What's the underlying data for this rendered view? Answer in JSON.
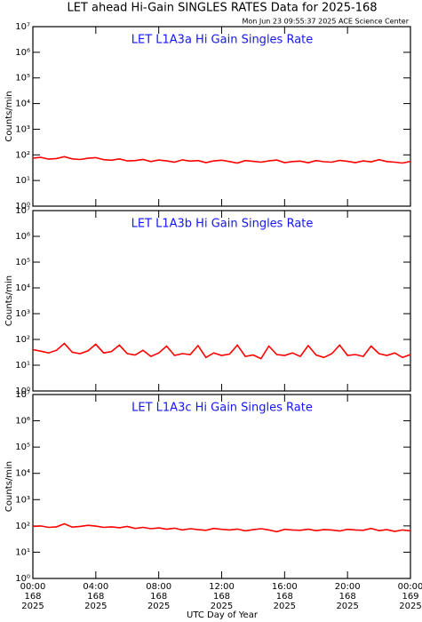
{
  "title": "LET ahead Hi-Gain SINGLES RATES Data for 2025-168",
  "timestamp": "Mon Jun 23 09:55:37 2025 ACE Science Center",
  "xlabel": "UTC Day of Year",
  "chart_data": [
    {
      "type": "line",
      "title": "LET L1A3a Hi Gain Singles Rate",
      "ylabel": "Counts/min",
      "log_y": true,
      "color": "#ff0000",
      "xlim": [
        0,
        24
      ],
      "ylim": [
        1,
        10000000
      ],
      "yticks": [
        {
          "value": 1,
          "label": "10⁰"
        },
        {
          "value": 10,
          "label": "10¹"
        },
        {
          "value": 100,
          "label": "10²"
        },
        {
          "value": 1000,
          "label": "10³"
        },
        {
          "value": 10000,
          "label": "10⁴"
        },
        {
          "value": 100000,
          "label": "10⁵"
        },
        {
          "value": 1000000,
          "label": "10⁶"
        },
        {
          "value": 10000000,
          "label": "10⁷"
        }
      ],
      "x": [
        0,
        0.5,
        1,
        1.5,
        2,
        2.5,
        3,
        3.5,
        4,
        4.5,
        5,
        5.5,
        6,
        6.5,
        7,
        7.5,
        8,
        8.5,
        9,
        9.5,
        10,
        10.5,
        11,
        11.5,
        12,
        12.5,
        13,
        13.5,
        14,
        14.5,
        15,
        15.5,
        16,
        16.5,
        17,
        17.5,
        18,
        18.5,
        19,
        19.5,
        20,
        20.5,
        21,
        21.5,
        22,
        22.5,
        23,
        23.5,
        24
      ],
      "values": [
        75,
        80,
        68,
        72,
        85,
        70,
        66,
        74,
        78,
        65,
        62,
        70,
        58,
        60,
        66,
        55,
        63,
        58,
        52,
        64,
        57,
        60,
        50,
        58,
        62,
        55,
        48,
        60,
        56,
        52,
        58,
        63,
        50,
        55,
        57,
        49,
        60,
        54,
        52,
        61,
        56,
        50,
        58,
        53,
        65,
        55,
        52,
        48,
        56
      ]
    },
    {
      "type": "line",
      "title": "LET L1A3b Hi Gain Singles Rate",
      "ylabel": "Counts/min",
      "log_y": true,
      "color": "#ff0000",
      "xlim": [
        0,
        24
      ],
      "ylim": [
        1,
        10000000
      ],
      "yticks": [
        {
          "value": 1,
          "label": "10⁰"
        },
        {
          "value": 10,
          "label": "10¹"
        },
        {
          "value": 100,
          "label": "10²"
        },
        {
          "value": 1000,
          "label": "10³"
        },
        {
          "value": 10000,
          "label": "10⁴"
        },
        {
          "value": 100000,
          "label": "10⁵"
        },
        {
          "value": 1000000,
          "label": "10⁶"
        },
        {
          "value": 10000000,
          "label": "10⁷"
        }
      ],
      "x": [
        0,
        0.5,
        1,
        1.5,
        2,
        2.5,
        3,
        3.5,
        4,
        4.5,
        5,
        5.5,
        6,
        6.5,
        7,
        7.5,
        8,
        8.5,
        9,
        9.5,
        10,
        10.5,
        11,
        11.5,
        12,
        12.5,
        13,
        13.5,
        14,
        14.5,
        15,
        15.5,
        16,
        16.5,
        17,
        17.5,
        18,
        18.5,
        19,
        19.5,
        20,
        20.5,
        21,
        21.5,
        22,
        22.5,
        23,
        23.5,
        24
      ],
      "values": [
        40,
        35,
        30,
        38,
        70,
        32,
        28,
        36,
        65,
        30,
        34,
        60,
        28,
        25,
        38,
        22,
        30,
        55,
        24,
        28,
        26,
        58,
        20,
        30,
        24,
        27,
        60,
        22,
        25,
        18,
        55,
        26,
        24,
        30,
        22,
        58,
        25,
        20,
        28,
        60,
        24,
        26,
        22,
        55,
        28,
        24,
        30,
        20,
        26
      ]
    },
    {
      "type": "line",
      "title": "LET L1A3c Hi Gain Singles Rate",
      "ylabel": "Counts/min",
      "log_y": true,
      "color": "#ff0000",
      "xlim": [
        0,
        24
      ],
      "ylim": [
        1,
        10000000
      ],
      "yticks": [
        {
          "value": 1,
          "label": "10⁰"
        },
        {
          "value": 10,
          "label": "10¹"
        },
        {
          "value": 100,
          "label": "10²"
        },
        {
          "value": 1000,
          "label": "10³"
        },
        {
          "value": 10000,
          "label": "10⁴"
        },
        {
          "value": 100000,
          "label": "10⁵"
        },
        {
          "value": 1000000,
          "label": "10⁶"
        },
        {
          "value": 10000000,
          "label": "10⁷"
        }
      ],
      "xticks": [
        {
          "value": 0,
          "label": "00:00"
        },
        {
          "value": 4,
          "label": "04:00"
        },
        {
          "value": 8,
          "label": "08:00"
        },
        {
          "value": 12,
          "label": "12:00"
        },
        {
          "value": 16,
          "label": "16:00"
        },
        {
          "value": 20,
          "label": "20:00"
        },
        {
          "value": 24,
          "label": "00:00"
        }
      ],
      "xtick_days": [
        "168",
        "168",
        "168",
        "168",
        "168",
        "168",
        "169"
      ],
      "xtick_years": [
        "2025",
        "2025",
        "2025",
        "2025",
        "2025",
        "2025",
        "2025"
      ],
      "x": [
        0,
        0.5,
        1,
        1.5,
        2,
        2.5,
        3,
        3.5,
        4,
        4.5,
        5,
        5.5,
        6,
        6.5,
        7,
        7.5,
        8,
        8.5,
        9,
        9.5,
        10,
        10.5,
        11,
        11.5,
        12,
        12.5,
        13,
        13.5,
        14,
        14.5,
        15,
        15.5,
        16,
        16.5,
        17,
        17.5,
        18,
        18.5,
        19,
        19.5,
        20,
        20.5,
        21,
        21.5,
        22,
        22.5,
        23,
        23.5,
        24
      ],
      "values": [
        95,
        100,
        88,
        92,
        120,
        90,
        96,
        105,
        98,
        88,
        92,
        85,
        95,
        80,
        88,
        78,
        84,
        75,
        82,
        70,
        78,
        72,
        68,
        80,
        74,
        70,
        76,
        65,
        72,
        78,
        70,
        60,
        74,
        70,
        68,
        75,
        66,
        72,
        70,
        64,
        74,
        70,
        68,
        80,
        66,
        72,
        62,
        70,
        65
      ]
    }
  ]
}
